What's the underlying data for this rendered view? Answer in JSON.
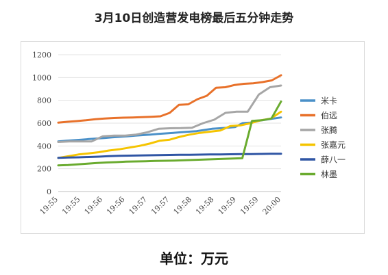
{
  "chart_data": {
    "type": "line",
    "title": "3月10日创造营发电榜最后五分钟走势",
    "xlabel": "",
    "ylabel": "",
    "ylim": [
      0,
      1200
    ],
    "yticks": [
      0,
      200,
      400,
      600,
      800,
      1000,
      1200
    ],
    "xtick_labels": [
      "19:55",
      "19:55",
      "19:56",
      "19:56",
      "19:57",
      "19:57",
      "19:58",
      "19:58",
      "19:59",
      "19:59",
      "20:00"
    ],
    "grid": "horizontal",
    "legend_position": "right",
    "series": [
      {
        "name": "米卡",
        "color": "#4a90c8",
        "values": [
          440,
          445,
          450,
          455,
          460,
          465,
          470,
          475,
          480,
          485,
          490,
          495,
          500,
          505,
          510,
          515,
          520,
          525,
          530,
          540,
          550,
          555,
          560,
          565,
          600,
          605,
          620,
          630,
          640,
          650
        ]
      },
      {
        "name": "伯远",
        "color": "#e8712a",
        "values": [
          605,
          612,
          618,
          625,
          635,
          640,
          645,
          648,
          650,
          652,
          655,
          660,
          690,
          760,
          765,
          810,
          840,
          910,
          915,
          935,
          945,
          950,
          960,
          975,
          1020
        ]
      },
      {
        "name": "张腾",
        "color": "#a6a6a6",
        "values": [
          435,
          440,
          440,
          440,
          485,
          490,
          490,
          500,
          520,
          550,
          555,
          556,
          560,
          600,
          630,
          690,
          700,
          700,
          850,
          915,
          930
        ]
      },
      {
        "name": "张嘉元",
        "color": "#f5c400",
        "values": [
          295,
          310,
          325,
          335,
          345,
          360,
          370,
          385,
          400,
          420,
          445,
          455,
          480,
          500,
          515,
          525,
          535,
          575,
          580,
          600,
          625,
          640,
          700
        ]
      },
      {
        "name": "薛八一",
        "color": "#2f55a4",
        "values": [
          295,
          298,
          300,
          303,
          306,
          310,
          313,
          315,
          316,
          318,
          320,
          321,
          322,
          323,
          324,
          325,
          326,
          327,
          328,
          329,
          330,
          331,
          332
        ]
      },
      {
        "name": "林墨",
        "color": "#6aab2f",
        "values": [
          230,
          233,
          238,
          245,
          250,
          255,
          258,
          262,
          264,
          266,
          268,
          270,
          272,
          275,
          278,
          280,
          283,
          286,
          290,
          293,
          620,
          625,
          640,
          790
        ]
      }
    ]
  },
  "footer": {
    "unit_text": "单位：万元"
  }
}
